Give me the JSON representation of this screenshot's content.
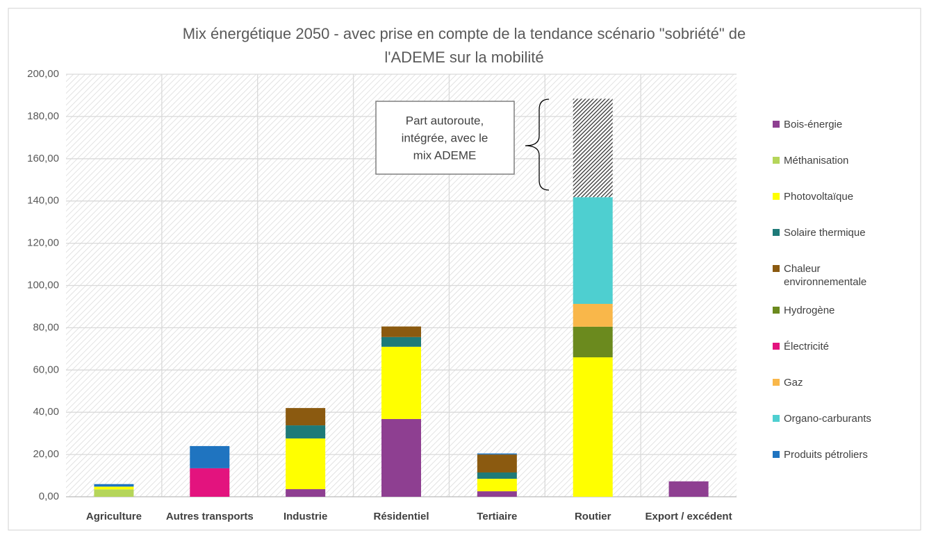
{
  "chart_data": {
    "type": "stacked_bar",
    "title": [
      "Mix énergétique 2050 - avec prise en compte de la tendance scénario \"sobriété\" de",
      "l'ADEME sur la mobilité"
    ],
    "categories": [
      "Agriculture",
      "Autres transports",
      "Industrie",
      "Résidentiel",
      "Tertiaire",
      "Routier",
      "Export / excédent"
    ],
    "series": [
      {
        "name": "Bois-énergie",
        "color": "#8e3f91",
        "values": [
          null,
          null,
          3.6,
          36.8,
          2.6,
          null,
          7.3
        ]
      },
      {
        "name": "Méthanisation",
        "color": "#b5d55a",
        "values": [
          3.5,
          null,
          null,
          null,
          null,
          null,
          null
        ]
      },
      {
        "name": "Photovoltaïque",
        "color": "#ffff00",
        "values": [
          1.3,
          null,
          24,
          34.2,
          5.9,
          66,
          null
        ]
      },
      {
        "name": "Solaire thermique",
        "color": "#1e7a78",
        "values": [
          null,
          null,
          6.2,
          4.6,
          3,
          null,
          null
        ]
      },
      {
        "name": "Chaleur environnementale",
        "color": "#8b5a10",
        "values": [
          null,
          null,
          8.2,
          5,
          8.5,
          null,
          null
        ]
      },
      {
        "name": "Hydrogène",
        "color": "#6b8a1e",
        "values": [
          null,
          null,
          null,
          null,
          null,
          14.5,
          null
        ]
      },
      {
        "name": "Électricité",
        "color": "#e3137e",
        "values": [
          null,
          13.5,
          null,
          null,
          null,
          null,
          null
        ]
      },
      {
        "name": "Gaz",
        "color": "#f9b74a",
        "values": [
          null,
          null,
          null,
          null,
          null,
          10.8,
          null
        ]
      },
      {
        "name": "Organo-carburants",
        "color": "#4ecfd0",
        "values": [
          null,
          null,
          null,
          null,
          null,
          50.5,
          null
        ]
      },
      {
        "name": "Produits pétroliers",
        "color": "#1f74c0",
        "values": [
          1.2,
          10.5,
          null,
          null,
          0.5,
          null,
          null
        ]
      },
      {
        "color": "#444444",
        "pattern": "hatch",
        "values": [
          null,
          null,
          null,
          null,
          null,
          46.6,
          null
        ]
      }
    ],
    "annotation": [
      "Part autoroute,",
      "intégrée, avec le",
      "mix ADEME"
    ],
    "ylim": [
      0,
      200
    ],
    "yticks": [
      {
        "value": 0,
        "label": "0,00"
      },
      {
        "value": 20,
        "label": "20,00"
      },
      {
        "value": 40,
        "label": "40,00"
      },
      {
        "value": 60,
        "label": "60,00"
      },
      {
        "value": 80,
        "label": "80,00"
      },
      {
        "value": 100,
        "label": "100,00"
      },
      {
        "value": 120,
        "label": "120,00"
      },
      {
        "value": 140,
        "label": "140,00"
      },
      {
        "value": 160,
        "label": "160,00"
      },
      {
        "value": 180,
        "label": "180,00"
      },
      {
        "value": 200,
        "label": "200,00"
      }
    ],
    "grid": true,
    "legend": "right"
  }
}
